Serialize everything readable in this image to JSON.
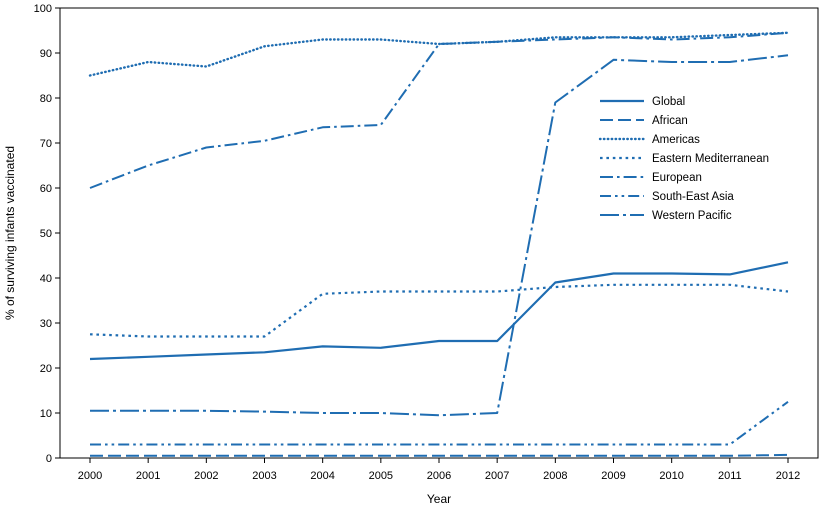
{
  "chart_data": {
    "type": "line",
    "title": "",
    "xlabel": "Year",
    "ylabel": "% of surviving infants vaccinated",
    "x": [
      2000,
      2001,
      2002,
      2003,
      2004,
      2005,
      2006,
      2007,
      2008,
      2009,
      2010,
      2011,
      2012
    ],
    "ylim": [
      0,
      100
    ],
    "ytick_step": 10,
    "grid": false,
    "legend_position": "inside-upper-right",
    "line_color": "#1F6DB2",
    "series": [
      {
        "name": "Global",
        "line_style": "solid",
        "values": [
          22,
          22.5,
          23,
          23.5,
          24.8,
          24.5,
          26,
          26,
          39,
          41,
          41,
          40.8,
          43.5
        ]
      },
      {
        "name": "African",
        "line_style": "long-dash",
        "values": [
          0.5,
          0.5,
          0.5,
          0.5,
          0.5,
          0.5,
          0.5,
          0.5,
          0.5,
          0.5,
          0.5,
          0.5,
          0.7
        ]
      },
      {
        "name": "Americas",
        "line_style": "dotted",
        "values": [
          85,
          88,
          87,
          91.5,
          93,
          93,
          92,
          92.5,
          93.5,
          93.5,
          93.5,
          94,
          94.5
        ]
      },
      {
        "name": "Eastern Mediterranean",
        "line_style": "short-dash",
        "values": [
          27.5,
          27,
          27,
          27,
          36.5,
          37,
          37,
          37,
          38,
          38.5,
          38.5,
          38.5,
          37
        ]
      },
      {
        "name": "European",
        "line_style": "dash-dot",
        "values": [
          60,
          65,
          69,
          70.5,
          73.5,
          74,
          92,
          92.5,
          93,
          93.5,
          93,
          93.5,
          94.5
        ]
      },
      {
        "name": "South-East Asia",
        "line_style": "dash-dot-dot",
        "values": [
          3,
          3,
          3,
          3,
          3,
          3,
          3,
          3,
          3,
          3,
          3,
          3,
          12.5
        ]
      },
      {
        "name": "Western Pacific",
        "line_style": "long-dash-dot",
        "values": [
          10.5,
          10.5,
          10.5,
          10.3,
          10,
          10,
          9.5,
          10,
          79,
          88.5,
          88,
          88,
          89.5
        ]
      }
    ]
  }
}
